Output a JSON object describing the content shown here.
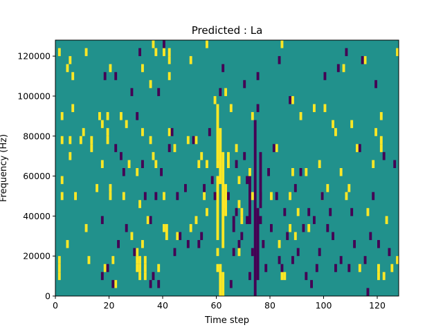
{
  "chart_data": {
    "type": "heatmap",
    "title": "Predicted : La",
    "xlabel": "Time step",
    "ylabel": "Frequency (Hz)",
    "xlim": [
      0,
      128
    ],
    "ylim": [
      0,
      128000
    ],
    "x_ticks": [
      0,
      20,
      40,
      60,
      80,
      100,
      120
    ],
    "x_tick_labels": [
      "0",
      "20",
      "40",
      "60",
      "80",
      "100",
      "120"
    ],
    "y_ticks": [
      0,
      20000,
      40000,
      60000,
      80000,
      100000,
      120000
    ],
    "y_tick_labels": [
      "0",
      "20000",
      "40000",
      "60000",
      "80000",
      "100000",
      "120000"
    ],
    "colormap": "viridis",
    "colors": {
      "background": "#21918c",
      "high": "#fde725",
      "low": "#440154"
    },
    "cell_height_hz": 4000,
    "yellow_cells": [
      [
        1,
        120000
      ],
      [
        1,
        16000
      ],
      [
        1,
        12000
      ],
      [
        1,
        8000
      ],
      [
        2,
        88000
      ],
      [
        2,
        76000
      ],
      [
        2,
        56000
      ],
      [
        2,
        48000
      ],
      [
        4,
        112000
      ],
      [
        4,
        24000
      ],
      [
        5,
        116000
      ],
      [
        5,
        76000
      ],
      [
        5,
        68000
      ],
      [
        6,
        108000
      ],
      [
        6,
        92000
      ],
      [
        7,
        48000
      ],
      [
        9,
        76000
      ],
      [
        10,
        80000
      ],
      [
        11,
        120000
      ],
      [
        11,
        32000
      ],
      [
        12,
        16000
      ],
      [
        13,
        76000
      ],
      [
        13,
        72000
      ],
      [
        15,
        52000
      ],
      [
        16,
        88000
      ],
      [
        17,
        84000
      ],
      [
        17,
        64000
      ],
      [
        18,
        12000
      ],
      [
        19,
        88000
      ],
      [
        19,
        80000
      ],
      [
        19,
        76000
      ],
      [
        20,
        112000
      ],
      [
        20,
        52000
      ],
      [
        20,
        48000
      ],
      [
        21,
        16000
      ],
      [
        22,
        4000
      ],
      [
        24,
        88000
      ],
      [
        25,
        48000
      ],
      [
        26,
        84000
      ],
      [
        27,
        64000
      ],
      [
        28,
        28000
      ],
      [
        30,
        60000
      ],
      [
        30,
        20000
      ],
      [
        30,
        16000
      ],
      [
        30,
        12000
      ],
      [
        31,
        44000
      ],
      [
        31,
        16000
      ],
      [
        31,
        12000
      ],
      [
        31,
        8000
      ],
      [
        32,
        112000
      ],
      [
        32,
        80000
      ],
      [
        32,
        24000
      ],
      [
        33,
        16000
      ],
      [
        33,
        12000
      ],
      [
        33,
        8000
      ],
      [
        34,
        36000
      ],
      [
        35,
        104000
      ],
      [
        35,
        76000
      ],
      [
        36,
        124000
      ],
      [
        36,
        68000
      ],
      [
        37,
        120000
      ],
      [
        37,
        64000
      ],
      [
        38,
        12000
      ],
      [
        40,
        120000
      ],
      [
        40,
        48000
      ],
      [
        40,
        32000
      ],
      [
        41,
        28000
      ],
      [
        41,
        32000
      ],
      [
        42,
        120000
      ],
      [
        42,
        116000
      ],
      [
        42,
        108000
      ],
      [
        42,
        80000
      ],
      [
        44,
        72000
      ],
      [
        45,
        28000
      ],
      [
        49,
        76000
      ],
      [
        50,
        116000
      ],
      [
        50,
        32000
      ],
      [
        52,
        36000
      ],
      [
        52,
        76000
      ],
      [
        53,
        64000
      ],
      [
        54,
        68000
      ],
      [
        55,
        48000
      ],
      [
        56,
        124000
      ],
      [
        56,
        64000
      ],
      [
        56,
        40000
      ],
      [
        59,
        96000
      ],
      [
        60,
        64000
      ],
      [
        60,
        56000
      ],
      [
        60,
        20000
      ],
      [
        60,
        12000
      ],
      [
        63,
        100000
      ],
      [
        63,
        44000
      ],
      [
        65,
        92000
      ],
      [
        67,
        72000
      ],
      [
        68,
        56000
      ],
      [
        68,
        44000
      ],
      [
        68,
        20000
      ],
      [
        69,
        40000
      ],
      [
        69,
        36000
      ],
      [
        72,
        60000
      ],
      [
        73,
        48000
      ],
      [
        73,
        88000
      ],
      [
        80,
        48000
      ],
      [
        82,
        72000
      ],
      [
        83,
        24000
      ],
      [
        84,
        124000
      ],
      [
        84,
        8000
      ],
      [
        85,
        8000
      ],
      [
        87,
        48000
      ],
      [
        87,
        32000
      ],
      [
        88,
        60000
      ],
      [
        88,
        96000
      ],
      [
        89,
        28000
      ],
      [
        90,
        40000
      ],
      [
        91,
        88000
      ],
      [
        93,
        60000
      ],
      [
        94,
        32000
      ],
      [
        96,
        92000
      ],
      [
        98,
        64000
      ],
      [
        99,
        48000
      ],
      [
        100,
        92000
      ],
      [
        101,
        52000
      ],
      [
        103,
        84000
      ],
      [
        104,
        80000
      ],
      [
        106,
        60000
      ],
      [
        107,
        112000
      ],
      [
        108,
        48000
      ],
      [
        109,
        52000
      ],
      [
        110,
        84000
      ],
      [
        112,
        72000
      ],
      [
        113,
        12000
      ],
      [
        115,
        116000
      ],
      [
        116,
        40000
      ],
      [
        118,
        64000
      ],
      [
        119,
        80000
      ],
      [
        120,
        12000
      ],
      [
        120,
        8000
      ],
      [
        121,
        88000
      ],
      [
        121,
        76000
      ],
      [
        121,
        72000
      ],
      [
        122,
        8000
      ],
      [
        123,
        36000
      ],
      [
        125,
        12000
      ],
      [
        127,
        16000
      ],
      [
        127,
        120000
      ]
    ],
    "yellow_columns": [
      {
        "x": 60,
        "from": 68000,
        "to": 96000
      },
      {
        "x": 60,
        "from": 28000,
        "to": 60000
      },
      {
        "x": 61,
        "from": 0,
        "to": 16000
      },
      {
        "x": 61,
        "from": 56000,
        "to": 84000
      },
      {
        "x": 62,
        "from": 24000,
        "to": 72000
      },
      {
        "x": 62,
        "from": 0,
        "to": 12000
      },
      {
        "x": 63,
        "from": 40000,
        "to": 56000
      },
      {
        "x": 64,
        "from": 64000,
        "to": 72000
      }
    ],
    "purple_cells": [
      [
        17,
        12000
      ],
      [
        17,
        40000
      ],
      [
        18,
        112000
      ],
      [
        19,
        16000
      ],
      [
        21,
        8000
      ],
      [
        22,
        112000
      ],
      [
        22,
        76000
      ],
      [
        23,
        28000
      ],
      [
        24,
        72000
      ],
      [
        25,
        64000
      ],
      [
        26,
        36000
      ],
      [
        28,
        104000
      ],
      [
        29,
        24000
      ],
      [
        30,
        92000
      ],
      [
        31,
        124000
      ],
      [
        32,
        68000
      ],
      [
        33,
        52000
      ],
      [
        35,
        40000
      ],
      [
        35,
        8000
      ],
      [
        36,
        12000
      ],
      [
        37,
        52000
      ],
      [
        38,
        104000
      ],
      [
        38,
        8000
      ],
      [
        39,
        64000
      ],
      [
        40,
        128000
      ],
      [
        42,
        76000
      ],
      [
        43,
        84000
      ],
      [
        44,
        24000
      ],
      [
        45,
        52000
      ],
      [
        46,
        32000
      ],
      [
        48,
        56000
      ],
      [
        49,
        28000
      ],
      [
        51,
        80000
      ],
      [
        53,
        28000
      ],
      [
        54,
        32000
      ],
      [
        55,
        56000
      ],
      [
        57,
        84000
      ],
      [
        58,
        60000
      ],
      [
        59,
        52000
      ],
      [
        61,
        104000
      ],
      [
        62,
        116000
      ],
      [
        64,
        52000
      ],
      [
        65,
        8000
      ],
      [
        66,
        36000
      ],
      [
        66,
        24000
      ],
      [
        66,
        40000
      ],
      [
        67,
        68000
      ],
      [
        67,
        44000
      ],
      [
        68,
        28000
      ],
      [
        69,
        32000
      ],
      [
        70,
        108000
      ],
      [
        70,
        72000
      ],
      [
        71,
        60000
      ],
      [
        71,
        40000
      ],
      [
        72,
        12000
      ],
      [
        73,
        24000
      ],
      [
        75,
        112000
      ],
      [
        75,
        96000
      ],
      [
        76,
        52000
      ],
      [
        76,
        40000
      ],
      [
        77,
        28000
      ],
      [
        78,
        16000
      ],
      [
        79,
        64000
      ],
      [
        80,
        36000
      ],
      [
        81,
        76000
      ],
      [
        82,
        52000
      ],
      [
        83,
        120000
      ],
      [
        83,
        20000
      ],
      [
        84,
        16000
      ],
      [
        85,
        44000
      ],
      [
        86,
        32000
      ],
      [
        87,
        100000
      ],
      [
        88,
        20000
      ],
      [
        89,
        56000
      ],
      [
        90,
        24000
      ],
      [
        91,
        64000
      ],
      [
        92,
        36000
      ],
      [
        93,
        12000
      ],
      [
        94,
        44000
      ],
      [
        95,
        8000
      ],
      [
        96,
        40000
      ],
      [
        97,
        16000
      ],
      [
        98,
        24000
      ],
      [
        99,
        52000
      ],
      [
        100,
        112000
      ],
      [
        101,
        36000
      ],
      [
        102,
        44000
      ],
      [
        103,
        32000
      ],
      [
        104,
        16000
      ],
      [
        105,
        116000
      ],
      [
        106,
        20000
      ],
      [
        108,
        124000
      ],
      [
        109,
        16000
      ],
      [
        110,
        44000
      ],
      [
        111,
        28000
      ],
      [
        113,
        76000
      ],
      [
        114,
        120000
      ],
      [
        115,
        20000
      ],
      [
        116,
        4000
      ],
      [
        117,
        32000
      ],
      [
        118,
        52000
      ],
      [
        119,
        108000
      ],
      [
        120,
        28000
      ],
      [
        122,
        72000
      ],
      [
        124,
        24000
      ],
      [
        126,
        68000
      ]
    ],
    "purple_columns": [
      {
        "x": 74,
        "from": 0,
        "to": 88000
      },
      {
        "x": 75,
        "from": 8000,
        "to": 44000
      },
      {
        "x": 76,
        "from": 44000,
        "to": 72000
      },
      {
        "x": 72,
        "from": 36000,
        "to": 60000
      }
    ]
  }
}
